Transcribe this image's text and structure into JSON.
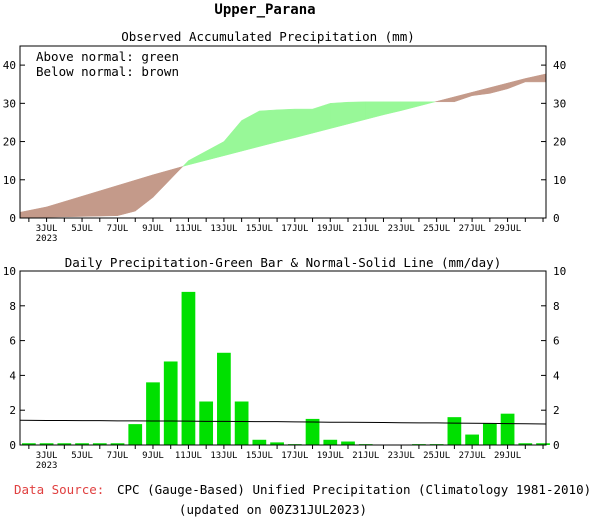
{
  "page": {
    "region_title": "Upper_Parana",
    "footer": {
      "source_label": "Data Source:",
      "source_text": "CPC (Gauge-Based) Unified Precipitation (Climatology 1981-2010)",
      "updated_text": "(updated on 00Z31JUL2023)"
    }
  },
  "colors": {
    "above_normal_fill": "#98f898",
    "below_normal_fill": "#c49a8a",
    "daily_bar": "#00e000",
    "source_label": "#e04040"
  },
  "chart_data": [
    {
      "type": "area",
      "title": "Observed Accumulated Precipitation (mm)",
      "legend": [
        "Above normal: green",
        "Below normal: brown"
      ],
      "legend_placement": "top-left",
      "x_tick_labels": [
        "3JUL",
        "5JUL",
        "7JUL",
        "9JUL",
        "11JUL",
        "13JUL",
        "15JUL",
        "17JUL",
        "19JUL",
        "21JUL",
        "23JUL",
        "25JUL",
        "27JUL",
        "29JUL"
      ],
      "x_year_label": "2023",
      "ylim": [
        0,
        45
      ],
      "y_ticks": [
        "0",
        "10",
        "20",
        "30",
        "40"
      ],
      "grid": false,
      "days": [
        2,
        3,
        4,
        5,
        6,
        7,
        8,
        9,
        10,
        11,
        12,
        13,
        14,
        15,
        16,
        17,
        18,
        19,
        20,
        21,
        22,
        23,
        24,
        25,
        26,
        27,
        28,
        29,
        30,
        31
      ],
      "series": [
        {
          "values": [
            0.1,
            0.2,
            0.3,
            0.4,
            0.5,
            0.6,
            1.8,
            5.4,
            10.2,
            15.0,
            17.5,
            20.0,
            25.5,
            28.0,
            28.3,
            28.5,
            28.5,
            30.0,
            30.3,
            30.4,
            30.4,
            30.4,
            30.4,
            30.4,
            30.4,
            32.0,
            32.6,
            33.8,
            35.6,
            35.6
          ]
        },
        {
          "values": [
            1.5,
            2.9,
            4.3,
            5.7,
            7.1,
            8.5,
            9.9,
            11.3,
            12.6,
            13.9,
            15.1,
            16.3,
            17.5,
            18.7,
            19.9,
            21.0,
            22.2,
            23.4,
            24.6,
            25.8,
            27.0,
            28.1,
            29.3,
            30.5,
            31.7,
            32.9,
            34.1,
            35.3,
            36.5,
            37.7
          ]
        }
      ]
    },
    {
      "type": "bar",
      "title": "Daily Precipitation-Green Bar & Normal-Solid Line (mm/day)",
      "x_tick_labels": [
        "3JUL",
        "5JUL",
        "7JUL",
        "9JUL",
        "11JUL",
        "13JUL",
        "15JUL",
        "17JUL",
        "19JUL",
        "21JUL",
        "23JUL",
        "25JUL",
        "27JUL",
        "29JUL"
      ],
      "x_year_label": "2023",
      "ylim": [
        0,
        10
      ],
      "y_ticks": [
        "0",
        "2",
        "4",
        "6",
        "8",
        "10"
      ],
      "grid": false,
      "days": [
        2,
        3,
        4,
        5,
        6,
        7,
        8,
        9,
        10,
        11,
        12,
        13,
        14,
        15,
        16,
        17,
        18,
        19,
        20,
        21,
        22,
        23,
        24,
        25,
        26,
        27,
        28,
        29,
        30,
        31
      ],
      "series": [
        {
          "values": [
            0.1,
            0.1,
            0.1,
            0.1,
            0.1,
            0.1,
            1.2,
            3.6,
            4.8,
            8.8,
            2.5,
            5.3,
            2.5,
            0.3,
            0.15,
            0.05,
            1.5,
            0.3,
            0.2,
            0.05,
            0.0,
            0.0,
            0.05,
            0.05,
            1.6,
            0.6,
            1.25,
            1.8,
            0.1,
            0.1
          ]
        },
        {
          "values": [
            1.42,
            1.41,
            1.41,
            1.4,
            1.4,
            1.39,
            1.39,
            1.38,
            1.38,
            1.37,
            1.36,
            1.36,
            1.35,
            1.34,
            1.34,
            1.33,
            1.32,
            1.31,
            1.31,
            1.3,
            1.29,
            1.28,
            1.27,
            1.27,
            1.26,
            1.25,
            1.24,
            1.23,
            1.22,
            1.21
          ]
        }
      ]
    }
  ]
}
